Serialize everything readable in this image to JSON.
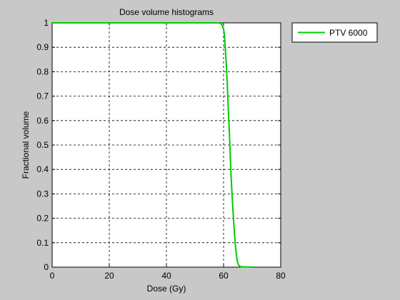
{
  "chart_data": {
    "type": "line",
    "title": "Dose volume histograms",
    "xlabel": "Dose (Gy)",
    "ylabel": "Fractional volume",
    "xlim": [
      0,
      80
    ],
    "ylim": [
      0,
      1
    ],
    "xticks": [
      0,
      20,
      40,
      60,
      80
    ],
    "yticks": [
      0,
      0.1,
      0.2,
      0.3,
      0.4,
      0.5,
      0.6,
      0.7,
      0.8,
      0.9,
      1
    ],
    "grid": true,
    "legend_position": "outside-top-right",
    "series": [
      {
        "name": "PTV 6000",
        "color": "#00cc00",
        "x": [
          0,
          55,
          58,
          59,
          59.5,
          60,
          60.3,
          60.6,
          61,
          61.3,
          61.6,
          62,
          62.3,
          62.6,
          63,
          63.4,
          63.8,
          64.2,
          64.6,
          65,
          65.5,
          66,
          68,
          70,
          70.5
        ],
        "y": [
          1,
          1,
          1,
          0.997,
          0.99,
          0.975,
          0.95,
          0.9,
          0.82,
          0.75,
          0.66,
          0.56,
          0.47,
          0.38,
          0.29,
          0.21,
          0.14,
          0.08,
          0.04,
          0.015,
          0.005,
          0.002,
          0.001,
          0.0005,
          0
        ]
      }
    ]
  }
}
